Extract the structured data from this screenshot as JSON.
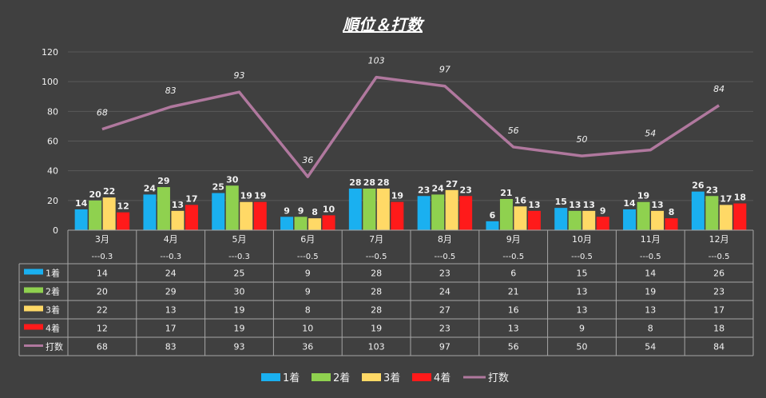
{
  "chart_data": {
    "type": "bar",
    "title": "順位＆打数",
    "categories": [
      "3月",
      "4月",
      "5月",
      "6月",
      "7月",
      "8月",
      "9月",
      "10月",
      "11月",
      "12月"
    ],
    "sublabels": [
      "---0.3",
      "---0.3",
      "---0.3",
      "---0.5",
      "---0.5",
      "---0.5",
      "---0.5",
      "---0.5",
      "---0.5",
      "---0.5"
    ],
    "ylim": [
      0,
      120
    ],
    "yticks": [
      0,
      20,
      40,
      60,
      80,
      100,
      120
    ],
    "grid": true,
    "legend_position": "bottom",
    "series": [
      {
        "name": "1着",
        "type": "bar",
        "color": "#1ab0f0",
        "values": [
          14,
          24,
          25,
          9,
          28,
          23,
          6,
          15,
          14,
          26
        ]
      },
      {
        "name": "2着",
        "type": "bar",
        "color": "#8fd14f",
        "values": [
          20,
          29,
          30,
          9,
          28,
          24,
          21,
          13,
          19,
          23
        ]
      },
      {
        "name": "3着",
        "type": "bar",
        "color": "#ffd966",
        "values": [
          22,
          13,
          19,
          8,
          28,
          27,
          16,
          13,
          13,
          17
        ]
      },
      {
        "name": "4着",
        "type": "bar",
        "color": "#ff1a1a",
        "values": [
          12,
          17,
          19,
          10,
          19,
          23,
          13,
          9,
          8,
          18
        ]
      },
      {
        "name": "打数",
        "type": "line",
        "color": "#b0789e",
        "values": [
          68,
          83,
          93,
          36,
          103,
          97,
          56,
          50,
          54,
          84
        ]
      }
    ]
  }
}
